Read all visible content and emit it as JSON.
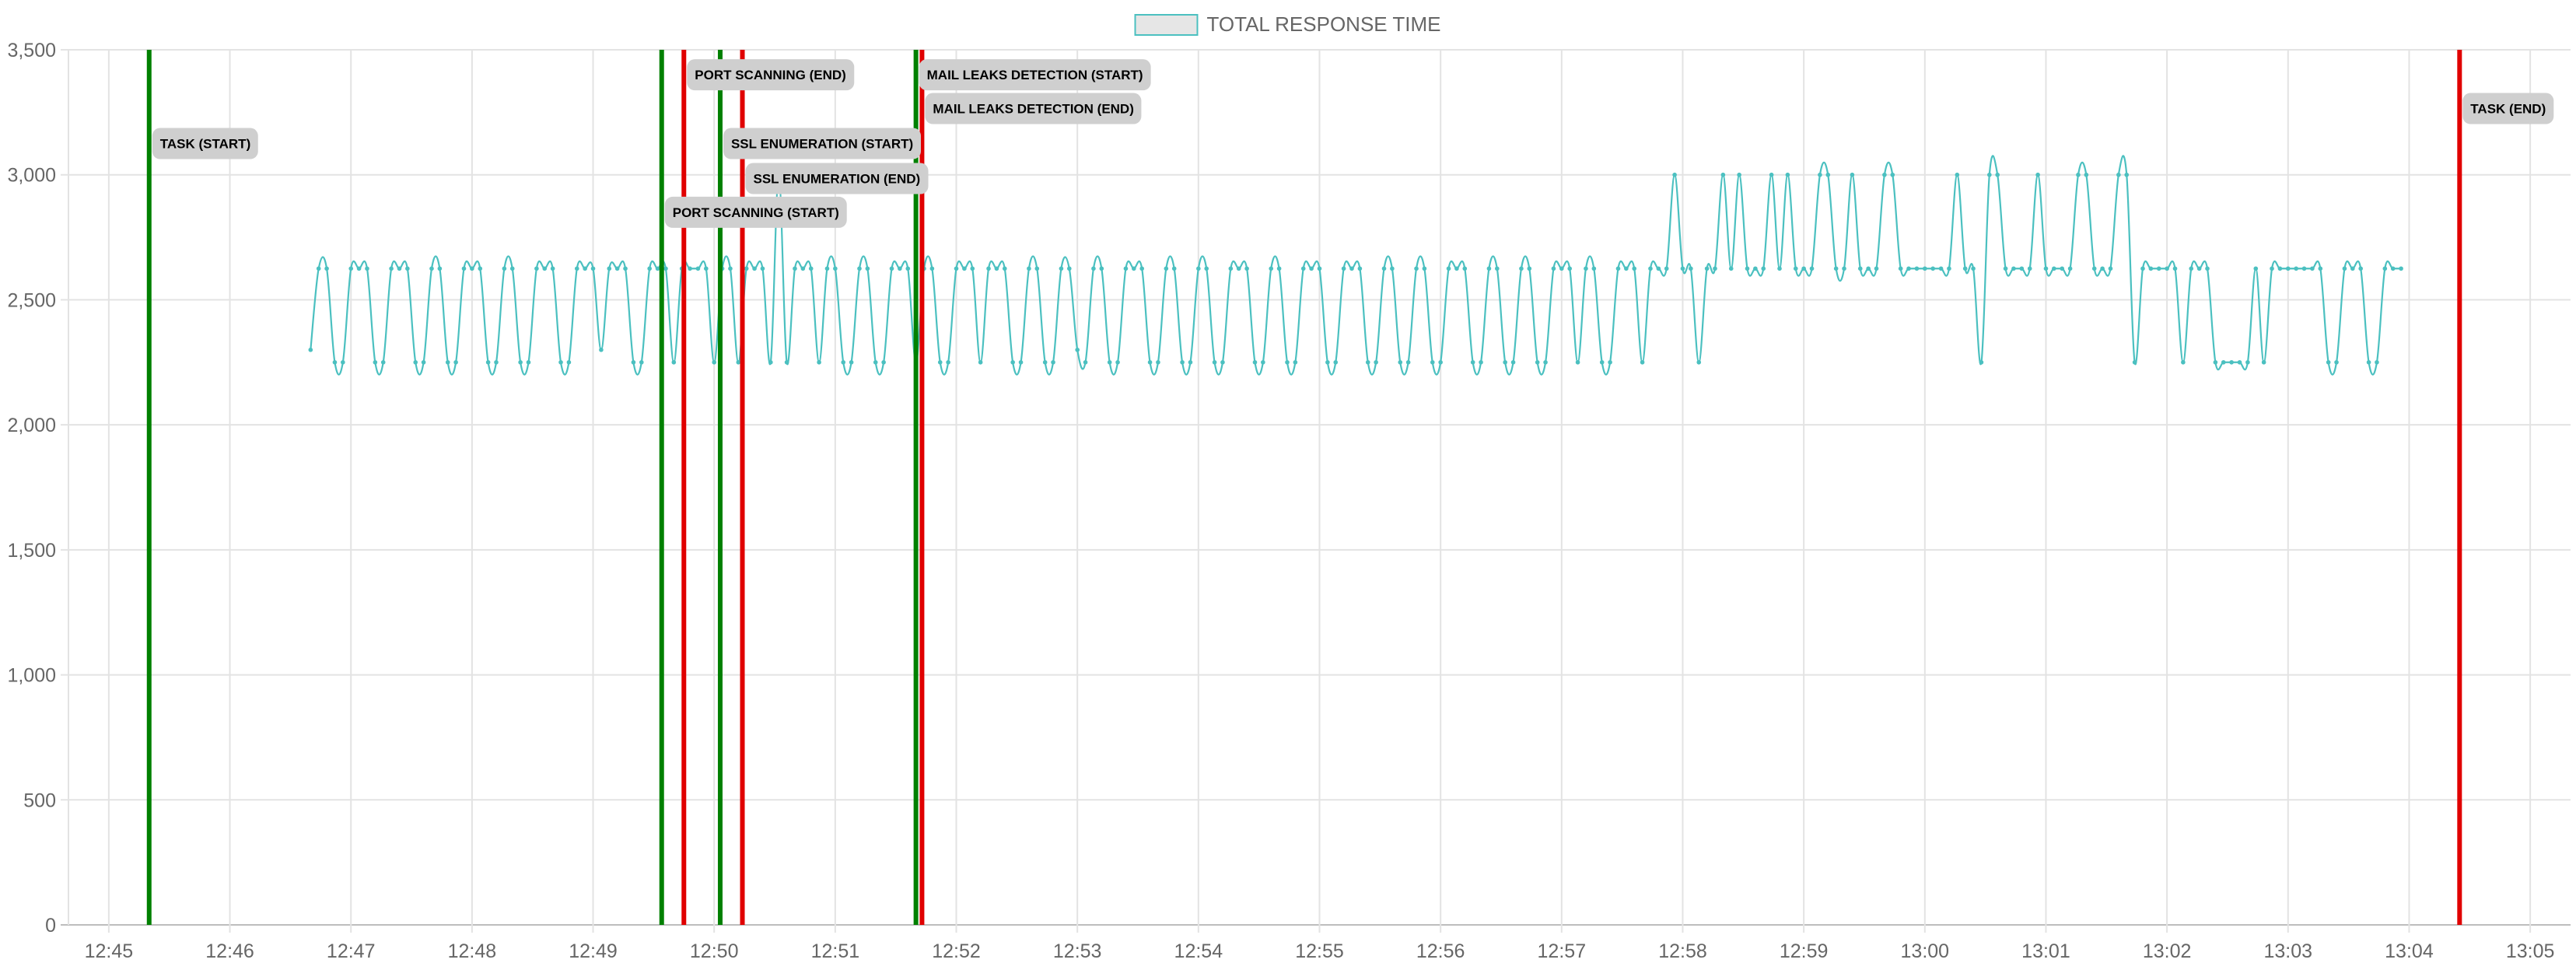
{
  "chart_data": {
    "type": "line",
    "title": "",
    "xlabel": "",
    "ylabel": "",
    "x_axis": {
      "range": [
        "12:44:40",
        "13:05:20"
      ],
      "ticks": [
        "12:45",
        "12:46",
        "12:47",
        "12:48",
        "12:49",
        "12:50",
        "12:51",
        "12:52",
        "12:53",
        "12:54",
        "12:55",
        "12:56",
        "12:57",
        "12:58",
        "12:59",
        "13:00",
        "13:01",
        "13:02",
        "13:03",
        "13:04",
        "13:05"
      ]
    },
    "y_axis": {
      "range": [
        0,
        3500
      ],
      "ticks": [
        0,
        500,
        1000,
        1500,
        2000,
        2500,
        3000,
        3500
      ],
      "tick_labels": [
        "0",
        "500",
        "1,000",
        "1,500",
        "2,000",
        "2,500",
        "3,000",
        "3,500"
      ]
    },
    "grid": true,
    "legend": {
      "position": "top-center",
      "entries": [
        {
          "name": "TOTAL RESPONSE TIME",
          "color": "#4bc0c0",
          "fill": "#e6e6e6"
        }
      ]
    },
    "series": [
      {
        "name": "TOTAL RESPONSE TIME",
        "color": "#4bc0c0",
        "points": [
          [
            "12:46:40",
            2300
          ],
          [
            "12:46:44",
            2625
          ],
          [
            "12:46:48",
            2625
          ],
          [
            "12:46:52",
            2250
          ],
          [
            "12:46:56",
            2250
          ],
          [
            "12:47:00",
            2625
          ],
          [
            "12:47:04",
            2625
          ],
          [
            "12:47:08",
            2625
          ],
          [
            "12:47:12",
            2250
          ],
          [
            "12:47:16",
            2250
          ],
          [
            "12:47:20",
            2625
          ],
          [
            "12:47:24",
            2625
          ],
          [
            "12:47:28",
            2625
          ],
          [
            "12:47:32",
            2250
          ],
          [
            "12:47:36",
            2250
          ],
          [
            "12:47:40",
            2625
          ],
          [
            "12:47:44",
            2625
          ],
          [
            "12:47:48",
            2250
          ],
          [
            "12:47:52",
            2250
          ],
          [
            "12:47:56",
            2625
          ],
          [
            "12:48:00",
            2625
          ],
          [
            "12:48:04",
            2625
          ],
          [
            "12:48:08",
            2250
          ],
          [
            "12:48:12",
            2250
          ],
          [
            "12:48:16",
            2625
          ],
          [
            "12:48:20",
            2625
          ],
          [
            "12:48:24",
            2250
          ],
          [
            "12:48:28",
            2250
          ],
          [
            "12:48:32",
            2625
          ],
          [
            "12:48:36",
            2625
          ],
          [
            "12:48:40",
            2625
          ],
          [
            "12:48:44",
            2250
          ],
          [
            "12:48:48",
            2250
          ],
          [
            "12:48:52",
            2625
          ],
          [
            "12:48:56",
            2625
          ],
          [
            "12:49:00",
            2625
          ],
          [
            "12:49:04",
            2300
          ],
          [
            "12:49:08",
            2625
          ],
          [
            "12:49:12",
            2625
          ],
          [
            "12:49:16",
            2625
          ],
          [
            "12:49:20",
            2250
          ],
          [
            "12:49:24",
            2250
          ],
          [
            "12:49:28",
            2625
          ],
          [
            "12:49:32",
            2625
          ],
          [
            "12:49:36",
            2625
          ],
          [
            "12:49:40",
            2250
          ],
          [
            "12:49:44",
            2625
          ],
          [
            "12:49:48",
            2625
          ],
          [
            "12:49:52",
            2625
          ],
          [
            "12:49:56",
            2625
          ],
          [
            "12:50:00",
            2250
          ],
          [
            "12:50:04",
            2625
          ],
          [
            "12:50:08",
            2625
          ],
          [
            "12:50:12",
            2250
          ],
          [
            "12:50:16",
            2625
          ],
          [
            "12:50:20",
            2625
          ],
          [
            "12:50:24",
            2625
          ],
          [
            "12:50:28",
            2250
          ],
          [
            "12:50:32",
            3000
          ],
          [
            "12:50:36",
            2250
          ],
          [
            "12:50:40",
            2625
          ],
          [
            "12:50:44",
            2625
          ],
          [
            "12:50:48",
            2625
          ],
          [
            "12:50:52",
            2250
          ],
          [
            "12:50:56",
            2625
          ],
          [
            "12:51:00",
            2625
          ],
          [
            "12:51:04",
            2250
          ],
          [
            "12:51:08",
            2250
          ],
          [
            "12:51:12",
            2625
          ],
          [
            "12:51:16",
            2625
          ],
          [
            "12:51:20",
            2250
          ],
          [
            "12:51:24",
            2250
          ],
          [
            "12:51:28",
            2625
          ],
          [
            "12:51:32",
            2625
          ],
          [
            "12:51:36",
            2625
          ],
          [
            "12:51:40",
            2250
          ],
          [
            "12:51:44",
            2625
          ],
          [
            "12:51:48",
            2625
          ],
          [
            "12:51:52",
            2250
          ],
          [
            "12:51:56",
            2250
          ],
          [
            "12:52:00",
            2625
          ],
          [
            "12:52:04",
            2625
          ],
          [
            "12:52:08",
            2625
          ],
          [
            "12:52:12",
            2250
          ],
          [
            "12:52:16",
            2625
          ],
          [
            "12:52:20",
            2625
          ],
          [
            "12:52:24",
            2625
          ],
          [
            "12:52:28",
            2250
          ],
          [
            "12:52:32",
            2250
          ],
          [
            "12:52:36",
            2625
          ],
          [
            "12:52:40",
            2625
          ],
          [
            "12:52:44",
            2250
          ],
          [
            "12:52:48",
            2250
          ],
          [
            "12:52:52",
            2625
          ],
          [
            "12:52:56",
            2625
          ],
          [
            "12:53:00",
            2300
          ],
          [
            "12:53:04",
            2250
          ],
          [
            "12:53:08",
            2625
          ],
          [
            "12:53:12",
            2625
          ],
          [
            "12:53:16",
            2250
          ],
          [
            "12:53:20",
            2250
          ],
          [
            "12:53:24",
            2625
          ],
          [
            "12:53:28",
            2625
          ],
          [
            "12:53:32",
            2625
          ],
          [
            "12:53:36",
            2250
          ],
          [
            "12:53:40",
            2250
          ],
          [
            "12:53:44",
            2625
          ],
          [
            "12:53:48",
            2625
          ],
          [
            "12:53:52",
            2250
          ],
          [
            "12:53:56",
            2250
          ],
          [
            "12:54:00",
            2625
          ],
          [
            "12:54:04",
            2625
          ],
          [
            "12:54:08",
            2250
          ],
          [
            "12:54:12",
            2250
          ],
          [
            "12:54:16",
            2625
          ],
          [
            "12:54:20",
            2625
          ],
          [
            "12:54:24",
            2625
          ],
          [
            "12:54:28",
            2250
          ],
          [
            "12:54:32",
            2250
          ],
          [
            "12:54:36",
            2625
          ],
          [
            "12:54:40",
            2625
          ],
          [
            "12:54:44",
            2250
          ],
          [
            "12:54:48",
            2250
          ],
          [
            "12:54:52",
            2625
          ],
          [
            "12:54:56",
            2625
          ],
          [
            "12:55:00",
            2625
          ],
          [
            "12:55:04",
            2250
          ],
          [
            "12:55:08",
            2250
          ],
          [
            "12:55:12",
            2625
          ],
          [
            "12:55:16",
            2625
          ],
          [
            "12:55:20",
            2625
          ],
          [
            "12:55:24",
            2250
          ],
          [
            "12:55:28",
            2250
          ],
          [
            "12:55:32",
            2625
          ],
          [
            "12:55:36",
            2625
          ],
          [
            "12:55:40",
            2250
          ],
          [
            "12:55:44",
            2250
          ],
          [
            "12:55:48",
            2625
          ],
          [
            "12:55:52",
            2625
          ],
          [
            "12:55:56",
            2250
          ],
          [
            "12:56:00",
            2250
          ],
          [
            "12:56:04",
            2625
          ],
          [
            "12:56:08",
            2625
          ],
          [
            "12:56:12",
            2625
          ],
          [
            "12:56:16",
            2250
          ],
          [
            "12:56:20",
            2250
          ],
          [
            "12:56:24",
            2625
          ],
          [
            "12:56:28",
            2625
          ],
          [
            "12:56:32",
            2250
          ],
          [
            "12:56:36",
            2250
          ],
          [
            "12:56:40",
            2625
          ],
          [
            "12:56:44",
            2625
          ],
          [
            "12:56:48",
            2250
          ],
          [
            "12:56:52",
            2250
          ],
          [
            "12:56:56",
            2625
          ],
          [
            "12:57:00",
            2625
          ],
          [
            "12:57:04",
            2625
          ],
          [
            "12:57:08",
            2250
          ],
          [
            "12:57:12",
            2625
          ],
          [
            "12:57:16",
            2625
          ],
          [
            "12:57:20",
            2250
          ],
          [
            "12:57:24",
            2250
          ],
          [
            "12:57:28",
            2625
          ],
          [
            "12:57:32",
            2625
          ],
          [
            "12:57:36",
            2625
          ],
          [
            "12:57:40",
            2250
          ],
          [
            "12:57:44",
            2625
          ],
          [
            "12:57:48",
            2625
          ],
          [
            "12:57:52",
            2625
          ],
          [
            "12:57:56",
            3000
          ],
          [
            "12:58:00",
            2625
          ],
          [
            "12:58:04",
            2625
          ],
          [
            "12:58:08",
            2250
          ],
          [
            "12:58:12",
            2625
          ],
          [
            "12:58:16",
            2625
          ],
          [
            "12:58:20",
            3000
          ],
          [
            "12:58:24",
            2625
          ],
          [
            "12:58:28",
            3000
          ],
          [
            "12:58:32",
            2625
          ],
          [
            "12:58:36",
            2625
          ],
          [
            "12:58:40",
            2625
          ],
          [
            "12:58:44",
            3000
          ],
          [
            "12:58:48",
            2625
          ],
          [
            "12:58:52",
            3000
          ],
          [
            "12:58:56",
            2625
          ],
          [
            "12:59:00",
            2625
          ],
          [
            "12:59:04",
            2625
          ],
          [
            "12:59:08",
            3000
          ],
          [
            "12:59:12",
            3000
          ],
          [
            "12:59:16",
            2625
          ],
          [
            "12:59:20",
            2625
          ],
          [
            "12:59:24",
            3000
          ],
          [
            "12:59:28",
            2625
          ],
          [
            "12:59:32",
            2625
          ],
          [
            "12:59:36",
            2625
          ],
          [
            "12:59:40",
            3000
          ],
          [
            "12:59:44",
            3000
          ],
          [
            "12:59:48",
            2625
          ],
          [
            "12:59:52",
            2625
          ],
          [
            "12:59:56",
            2625
          ],
          [
            "13:00:00",
            2625
          ],
          [
            "13:00:04",
            2625
          ],
          [
            "13:00:08",
            2625
          ],
          [
            "13:00:12",
            2625
          ],
          [
            "13:00:16",
            3000
          ],
          [
            "13:00:20",
            2625
          ],
          [
            "13:00:24",
            2625
          ],
          [
            "13:00:28",
            2250
          ],
          [
            "13:00:32",
            3000
          ],
          [
            "13:00:36",
            3000
          ],
          [
            "13:00:40",
            2625
          ],
          [
            "13:00:44",
            2625
          ],
          [
            "13:00:48",
            2625
          ],
          [
            "13:00:52",
            2625
          ],
          [
            "13:00:56",
            3000
          ],
          [
            "13:01:00",
            2625
          ],
          [
            "13:01:04",
            2625
          ],
          [
            "13:01:08",
            2625
          ],
          [
            "13:01:12",
            2625
          ],
          [
            "13:01:16",
            3000
          ],
          [
            "13:01:20",
            3000
          ],
          [
            "13:01:24",
            2625
          ],
          [
            "13:01:28",
            2625
          ],
          [
            "13:01:32",
            2625
          ],
          [
            "13:01:36",
            3000
          ],
          [
            "13:01:40",
            3000
          ],
          [
            "13:01:44",
            2250
          ],
          [
            "13:01:48",
            2625
          ],
          [
            "13:01:52",
            2625
          ],
          [
            "13:01:56",
            2625
          ],
          [
            "13:02:00",
            2625
          ],
          [
            "13:02:04",
            2625
          ],
          [
            "13:02:08",
            2250
          ],
          [
            "13:02:12",
            2625
          ],
          [
            "13:02:16",
            2625
          ],
          [
            "13:02:20",
            2625
          ],
          [
            "13:02:24",
            2250
          ],
          [
            "13:02:28",
            2250
          ],
          [
            "13:02:32",
            2250
          ],
          [
            "13:02:36",
            2250
          ],
          [
            "13:02:40",
            2250
          ],
          [
            "13:02:44",
            2625
          ],
          [
            "13:02:48",
            2250
          ],
          [
            "13:02:52",
            2625
          ],
          [
            "13:02:56",
            2625
          ],
          [
            "13:03:00",
            2625
          ],
          [
            "13:03:04",
            2625
          ],
          [
            "13:03:08",
            2625
          ],
          [
            "13:03:12",
            2625
          ],
          [
            "13:03:16",
            2625
          ],
          [
            "13:03:20",
            2250
          ],
          [
            "13:03:24",
            2250
          ],
          [
            "13:03:28",
            2625
          ],
          [
            "13:03:32",
            2625
          ],
          [
            "13:03:36",
            2625
          ],
          [
            "13:03:40",
            2250
          ],
          [
            "13:03:44",
            2250
          ],
          [
            "13:03:48",
            2625
          ],
          [
            "13:03:52",
            2625
          ],
          [
            "13:03:56",
            2625
          ]
        ]
      }
    ],
    "annotations": [
      {
        "label": "TASK (START)",
        "time": "12:45:20",
        "color": "#008000",
        "label_y": 3125
      },
      {
        "label": "PORT SCANNING (START)",
        "time": "12:49:34",
        "color": "#008000",
        "label_y": 2850
      },
      {
        "label": "PORT SCANNING (END)",
        "time": "12:49:45",
        "color": "#e00000",
        "label_y": 3400
      },
      {
        "label": "SSL ENUMERATION (START)",
        "time": "12:50:03",
        "color": "#008000",
        "label_y": 3125
      },
      {
        "label": "SSL ENUMERATION (END)",
        "time": "12:50:14",
        "color": "#e00000",
        "label_y": 2985
      },
      {
        "label": "MAIL LEAKS DETECTION (START)",
        "time": "12:51:40",
        "color": "#008000",
        "label_y": 3400
      },
      {
        "label": "MAIL LEAKS DETECTION (END)",
        "time": "12:51:43",
        "color": "#e00000",
        "label_y": 3265
      },
      {
        "label": "TASK (END)",
        "time": "13:04:25",
        "color": "#e00000",
        "label_y": 3265
      }
    ]
  }
}
